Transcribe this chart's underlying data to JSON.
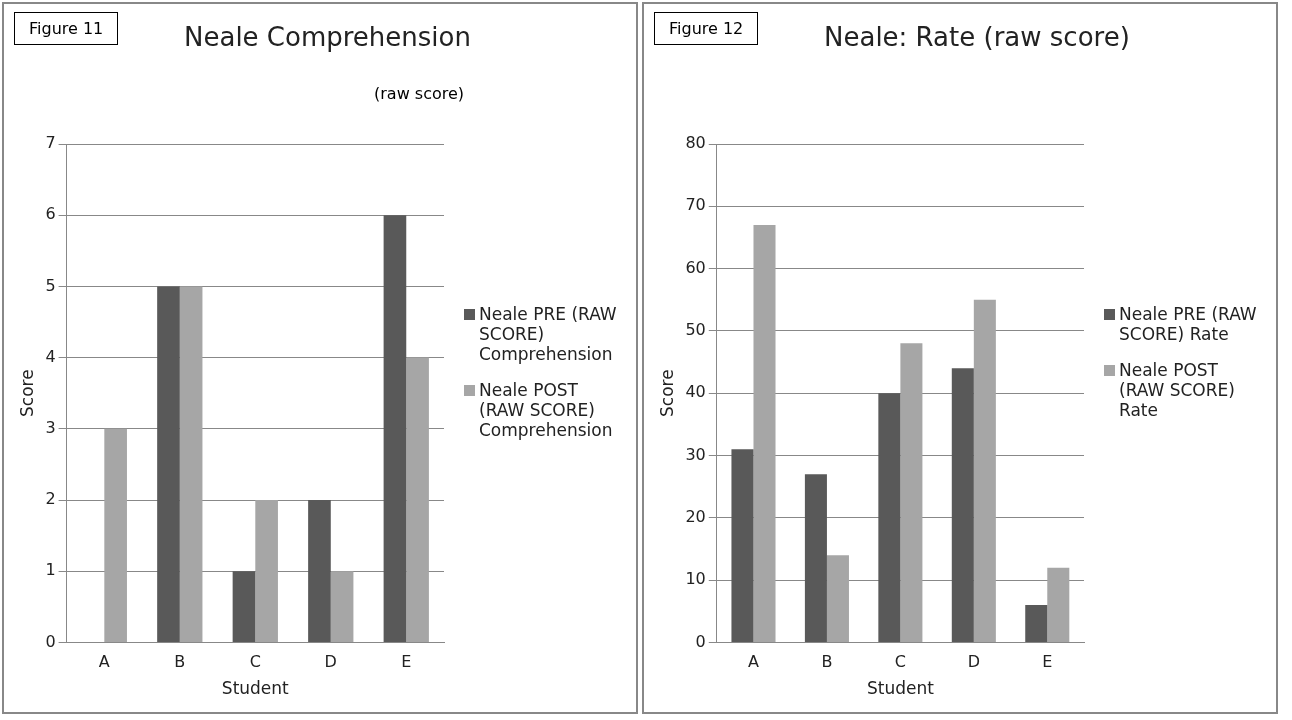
{
  "chart_data": [
    {
      "type": "bar",
      "title": "Neale Comprehension",
      "subtitle": "(raw score)",
      "annotations": [
        "Figure 11"
      ],
      "xlabel": "Student",
      "ylabel": "Score",
      "categories": [
        "A",
        "B",
        "C",
        "D",
        "E"
      ],
      "series": [
        {
          "name": "Neale PRE (RAW SCORE) Comprehension",
          "color": "#595959",
          "values": [
            0,
            5,
            1,
            2,
            6
          ]
        },
        {
          "name": "Neale POST (RAW SCORE) Comprehension",
          "color": "#a6a6a6",
          "values": [
            3,
            5,
            2,
            1,
            4
          ]
        }
      ],
      "ylim": [
        0,
        7
      ],
      "yticks": [
        0,
        1,
        2,
        3,
        4,
        5,
        6,
        7
      ],
      "grid": "y",
      "legend": "right"
    },
    {
      "type": "bar",
      "title": "Neale: Rate (raw score)",
      "annotations": [
        "Figure 12"
      ],
      "xlabel": "Student",
      "ylabel": "Score",
      "categories": [
        "A",
        "B",
        "C",
        "D",
        "E"
      ],
      "series": [
        {
          "name": "Neale PRE (RAW SCORE) Rate",
          "color": "#595959",
          "values": [
            31,
            27,
            40,
            44,
            6
          ]
        },
        {
          "name": "Neale POST (RAW SCORE) Rate",
          "color": "#a6a6a6",
          "values": [
            67,
            14,
            48,
            55,
            12
          ]
        }
      ],
      "ylim": [
        0,
        80
      ],
      "yticks": [
        0,
        10,
        20,
        30,
        40,
        50,
        60,
        70,
        80
      ],
      "grid": "y",
      "legend": "right"
    }
  ]
}
